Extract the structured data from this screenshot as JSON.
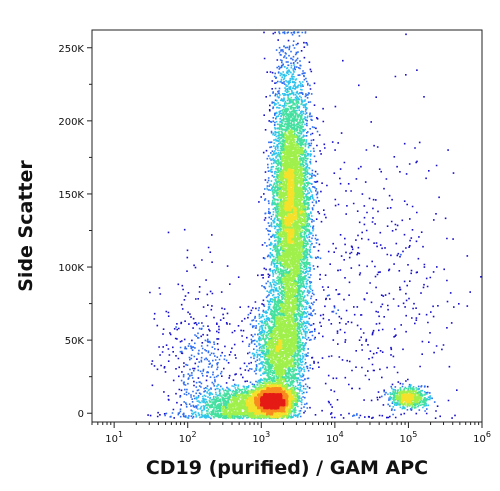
{
  "chart_data": {
    "type": "scatter",
    "style": "density-dot-plot",
    "xlabel": "CD19 (purified) / GAM APC",
    "ylabel": "Side Scatter",
    "x_scale": "log",
    "xlim": [
      5,
      1000000
    ],
    "ylim": [
      -6000,
      262144
    ],
    "x_ticks": [
      {
        "value": 10,
        "base": "10",
        "exp": "1"
      },
      {
        "value": 100,
        "base": "10",
        "exp": "2"
      },
      {
        "value": 1000,
        "base": "10",
        "exp": "3"
      },
      {
        "value": 10000,
        "base": "10",
        "exp": "4"
      },
      {
        "value": 100000,
        "base": "10",
        "exp": "5"
      },
      {
        "value": 1000000,
        "base": "10",
        "exp": "6"
      }
    ],
    "y_ticks": [
      {
        "value": 0,
        "label": "0"
      },
      {
        "value": 50000,
        "label": "50K"
      },
      {
        "value": 100000,
        "label": "100K"
      },
      {
        "value": 150000,
        "label": "150K"
      },
      {
        "value": 200000,
        "label": "200K"
      },
      {
        "value": 250000,
        "label": "250K"
      }
    ],
    "colormap": [
      "#1a10c8",
      "#2f6df0",
      "#2fc4ee",
      "#44e0a0",
      "#9ff04a",
      "#f5e12a",
      "#f88a1e",
      "#e51a14"
    ],
    "populations": [
      {
        "x_center": 2500,
        "y_center": 140000,
        "x_log_sd": 0.13,
        "y_sd": 45000,
        "weight": 0.42
      },
      {
        "x_center": 1400,
        "y_center": 9000,
        "x_log_sd": 0.14,
        "y_sd": 5000,
        "weight": 0.22
      },
      {
        "x_center": 1800,
        "y_center": 45000,
        "x_log_sd": 0.16,
        "y_sd": 18000,
        "weight": 0.16
      },
      {
        "x_center": 600,
        "y_center": 6000,
        "x_log_sd": 0.3,
        "y_sd": 6000,
        "weight": 0.1
      },
      {
        "x_center": 100000,
        "y_center": 11000,
        "x_log_sd": 0.13,
        "y_sd": 3500,
        "weight": 0.04
      },
      {
        "x_center": 30000,
        "y_center": 80000,
        "x_log_sd": 0.6,
        "y_sd": 60000,
        "weight": 0.03
      },
      {
        "x_center": 150,
        "y_center": 30000,
        "x_log_sd": 0.3,
        "y_sd": 30000,
        "weight": 0.03
      }
    ]
  }
}
